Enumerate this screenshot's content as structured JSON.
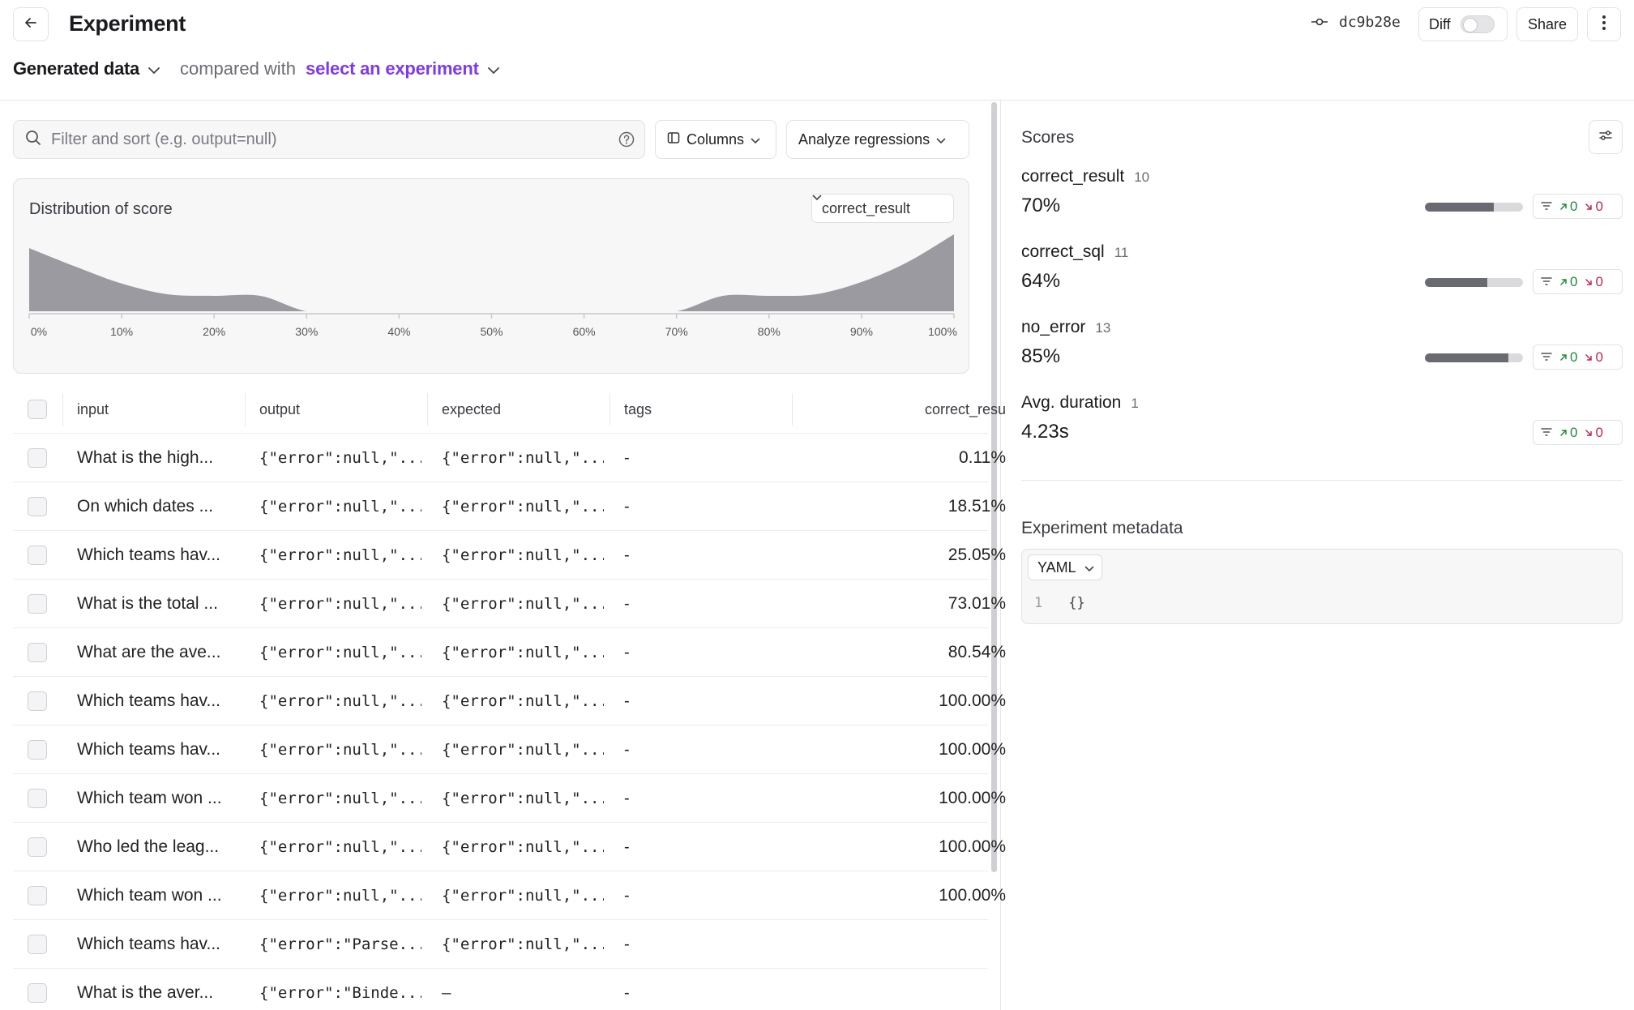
{
  "header": {
    "title": "Experiment",
    "commit": "dc9b28e",
    "diff_label": "Diff",
    "share_label": "Share"
  },
  "subheader": {
    "dataset": "Generated data",
    "compared_label": "compared with",
    "select_label": "select an experiment"
  },
  "filter": {
    "placeholder": "Filter and sort (e.g. output=null)"
  },
  "toolbar": {
    "columns_label": "Columns",
    "analyze_label": "Analyze regressions"
  },
  "distribution": {
    "title": "Distribution of score",
    "selected_score": "correct_result"
  },
  "chart_data": {
    "type": "area",
    "title": "Distribution of score",
    "x_tick_labels": [
      "0%",
      "10%",
      "20%",
      "30%",
      "40%",
      "50%",
      "60%",
      "70%",
      "80%",
      "90%",
      "100%"
    ],
    "x": [
      0,
      5,
      10,
      15,
      20,
      25,
      30,
      35,
      40,
      45,
      50,
      55,
      60,
      65,
      70,
      75,
      80,
      85,
      90,
      95,
      100
    ],
    "y": [
      0.82,
      0.58,
      0.36,
      0.22,
      0.2,
      0.2,
      0.0,
      0.0,
      0.0,
      0.0,
      0.0,
      0.0,
      0.0,
      0.0,
      0.0,
      0.2,
      0.2,
      0.22,
      0.38,
      0.64,
      1.0
    ],
    "xlim": [
      0,
      100
    ],
    "grid": false
  },
  "table": {
    "columns": [
      "input",
      "output",
      "expected",
      "tags",
      "correct_resu"
    ],
    "rows": [
      {
        "input": "What is the high...",
        "output": "{\"error\":null,\"...",
        "expected": "{\"error\":null,\"...",
        "tags": "-",
        "score": "0.11%"
      },
      {
        "input": "On which dates ...",
        "output": "{\"error\":null,\"...",
        "expected": "{\"error\":null,\"...",
        "tags": "-",
        "score": "18.51%"
      },
      {
        "input": "Which teams hav...",
        "output": "{\"error\":null,\"...",
        "expected": "{\"error\":null,\"...",
        "tags": "-",
        "score": "25.05%"
      },
      {
        "input": "What is the total ...",
        "output": "{\"error\":null,\"...",
        "expected": "{\"error\":null,\"...",
        "tags": "-",
        "score": "73.01%"
      },
      {
        "input": "What are the ave...",
        "output": "{\"error\":null,\"...",
        "expected": "{\"error\":null,\"...",
        "tags": "-",
        "score": "80.54%"
      },
      {
        "input": "Which teams hav...",
        "output": "{\"error\":null,\"...",
        "expected": "{\"error\":null,\"...",
        "tags": "-",
        "score": "100.00%"
      },
      {
        "input": "Which teams hav...",
        "output": "{\"error\":null,\"...",
        "expected": "{\"error\":null,\"...",
        "tags": "-",
        "score": "100.00%"
      },
      {
        "input": "Which team won ...",
        "output": "{\"error\":null,\"...",
        "expected": "{\"error\":null,\"...",
        "tags": "-",
        "score": "100.00%"
      },
      {
        "input": "Who led the leag...",
        "output": "{\"error\":null,\"...",
        "expected": "{\"error\":null,\"...",
        "tags": "-",
        "score": "100.00%"
      },
      {
        "input": "Which team won ...",
        "output": "{\"error\":null,\"...",
        "expected": "{\"error\":null,\"...",
        "tags": "-",
        "score": "100.00%"
      },
      {
        "input": "Which teams hav...",
        "output": "{\"error\":\"Parse...",
        "expected": "{\"error\":null,\"...",
        "tags": "-",
        "score": ""
      },
      {
        "input": "What is the aver...",
        "output": "{\"error\":\"Binde...",
        "expected": "–",
        "tags": "-",
        "score": ""
      }
    ]
  },
  "scores": {
    "title": "Scores",
    "items": [
      {
        "name": "correct_result",
        "count": "10",
        "value": "70%",
        "fraction": 0.7,
        "improved": "0",
        "regressed": "0"
      },
      {
        "name": "correct_sql",
        "count": "11",
        "value": "64%",
        "fraction": 0.64,
        "improved": "0",
        "regressed": "0"
      },
      {
        "name": "no_error",
        "count": "13",
        "value": "85%",
        "fraction": 0.85,
        "improved": "0",
        "regressed": "0"
      },
      {
        "name": "Avg. duration",
        "count": "1",
        "value": "4.23s",
        "fraction": null,
        "improved": "0",
        "regressed": "0"
      }
    ]
  },
  "metadata": {
    "title": "Experiment metadata",
    "format": "YAML",
    "line_number": "1",
    "code": "{}"
  },
  "colors": {
    "accent": "#7c3aed",
    "area_fill": "#9a9aa0",
    "bar_fill": "#6a6a72",
    "improved": "#1f8a3a",
    "regressed": "#c0264a"
  }
}
